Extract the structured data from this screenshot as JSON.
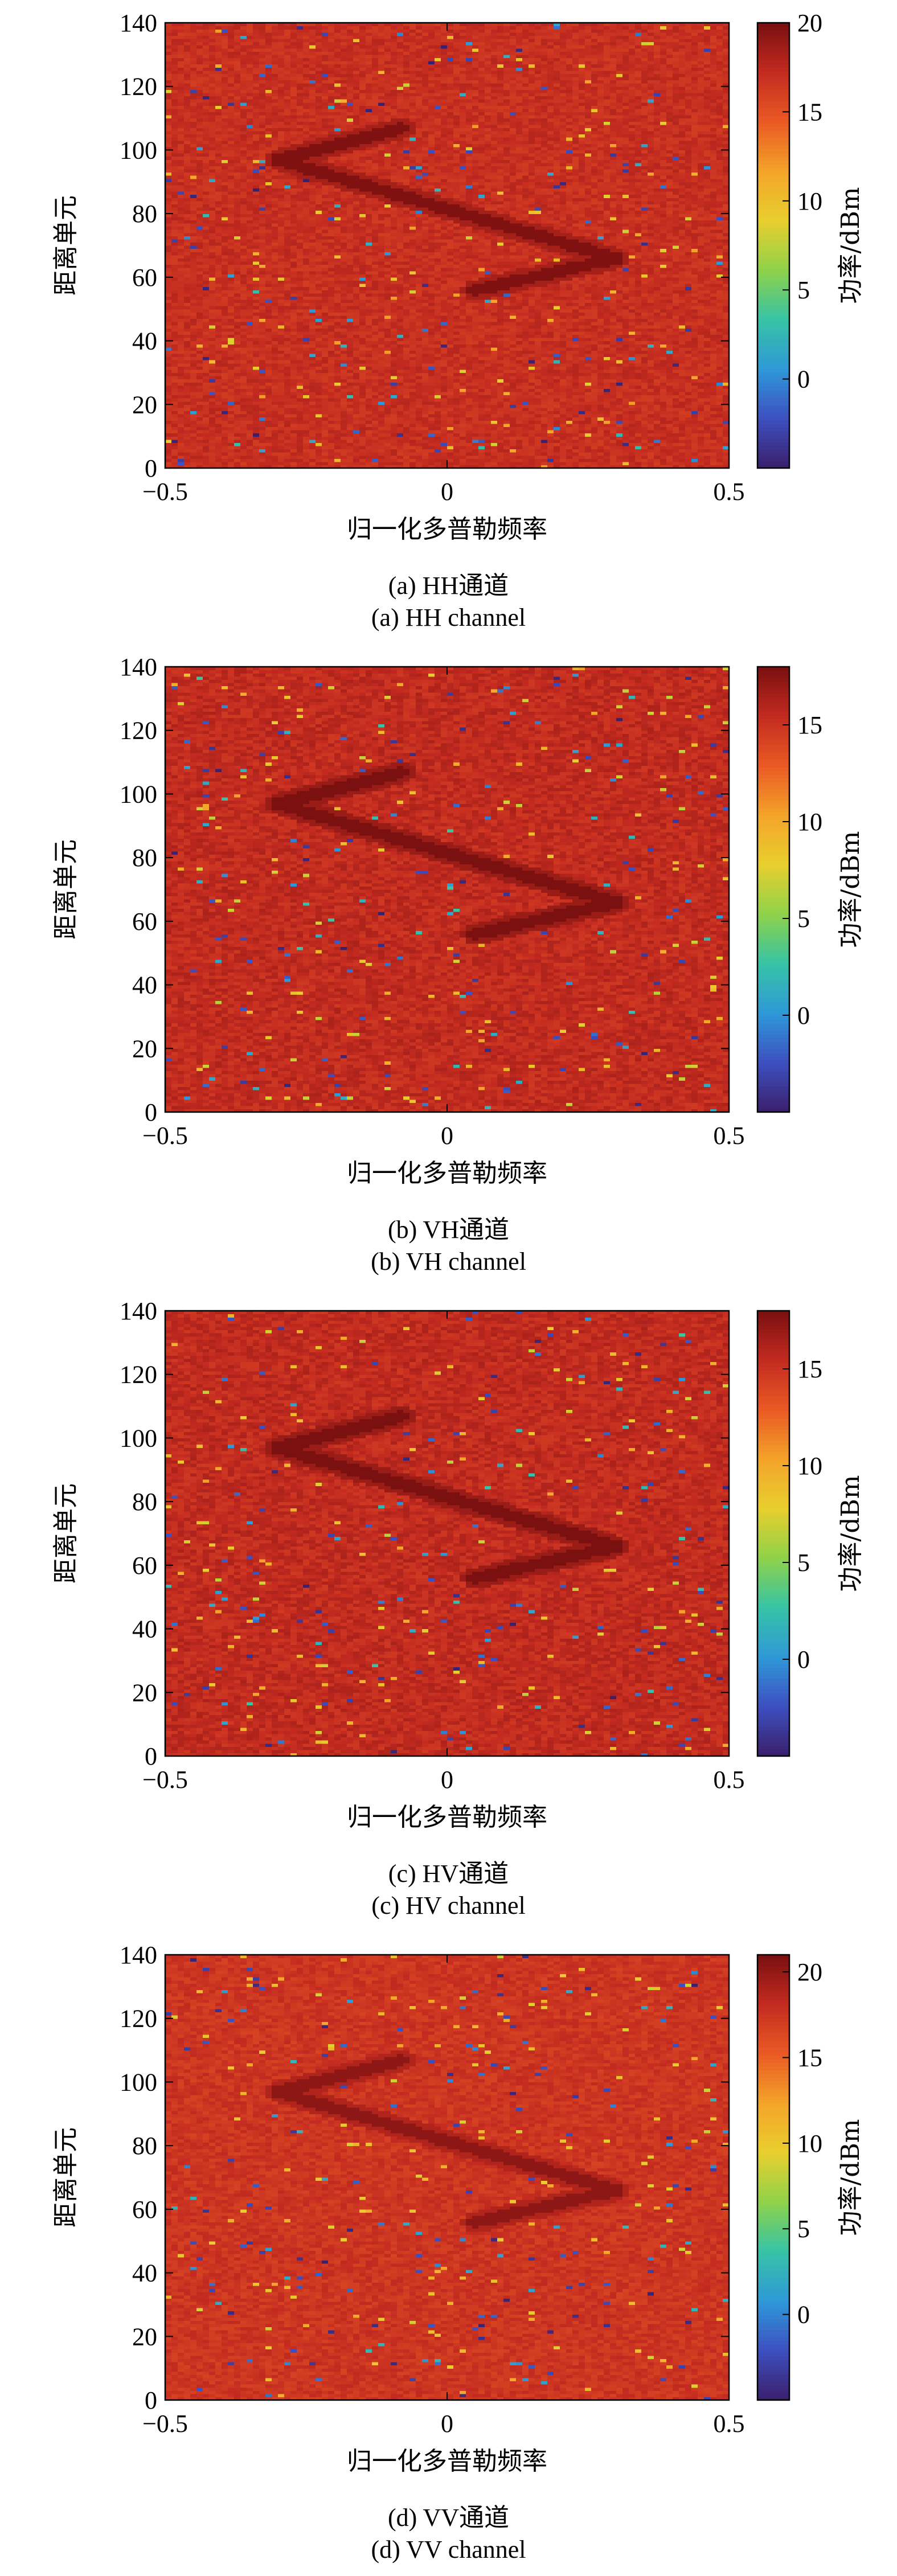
{
  "colors": {
    "background_cell": "#d53a28",
    "target_trace": "#8f1a16",
    "colormap": [
      "#3a1f6b",
      "#3d4fc0",
      "#2f98d8",
      "#36c3a6",
      "#8ed24a",
      "#e8cf2e",
      "#f4a42a",
      "#ea5a24",
      "#c42b20",
      "#7a1010"
    ]
  },
  "chart_data": [
    {
      "type": "heatmap",
      "caption_cn": "(a) HH通道",
      "caption_en": "(a) HH channel",
      "xlabel": "归一化多普勒频率",
      "ylabel": "距离单元",
      "colorbar_label": "功率/dBm",
      "x_ticks": [
        "−0.5",
        "0",
        "0.5"
      ],
      "y_ticks": [
        "0",
        "20",
        "40",
        "60",
        "80",
        "100",
        "120",
        "140"
      ],
      "xlim": [
        -0.5,
        0.5
      ],
      "ylim": [
        0,
        140
      ],
      "colorbar_ticks": [
        "0",
        "5",
        "10",
        "15",
        "20"
      ],
      "colorbar_values": [
        0,
        5,
        10,
        15,
        20
      ],
      "clim": [
        -5,
        20
      ],
      "background_level": 17,
      "trace": {
        "points": [
          [
            -0.08,
            107
          ],
          [
            -0.3,
            97
          ],
          [
            0.3,
            66
          ],
          [
            0.05,
            56
          ]
        ],
        "level": 19
      },
      "speckle_seed": 11
    },
    {
      "type": "heatmap",
      "caption_cn": "(b) VH通道",
      "caption_en": "(b) VH channel",
      "xlabel": "归一化多普勒频率",
      "ylabel": "距离单元",
      "colorbar_label": "功率/dBm",
      "x_ticks": [
        "−0.5",
        "0",
        "0.5"
      ],
      "y_ticks": [
        "0",
        "20",
        "40",
        "60",
        "80",
        "100",
        "120",
        "140"
      ],
      "xlim": [
        -0.5,
        0.5
      ],
      "ylim": [
        0,
        140
      ],
      "colorbar_ticks": [
        "0",
        "5",
        "10",
        "15"
      ],
      "colorbar_values": [
        0,
        5,
        10,
        15
      ],
      "clim": [
        -5,
        18
      ],
      "background_level": 15.5,
      "trace": {
        "points": [
          [
            -0.08,
            107
          ],
          [
            -0.3,
            97
          ],
          [
            0.3,
            66
          ],
          [
            0.05,
            56
          ]
        ],
        "level": 17.5
      },
      "speckle_seed": 23
    },
    {
      "type": "heatmap",
      "caption_cn": "(c) HV通道",
      "caption_en": "(c) HV channel",
      "xlabel": "归一化多普勒频率",
      "ylabel": "距离单元",
      "colorbar_label": "功率/dBm",
      "x_ticks": [
        "−0.5",
        "0",
        "0.5"
      ],
      "y_ticks": [
        "0",
        "20",
        "40",
        "60",
        "80",
        "100",
        "120",
        "140"
      ],
      "xlim": [
        -0.5,
        0.5
      ],
      "ylim": [
        0,
        140
      ],
      "colorbar_ticks": [
        "0",
        "5",
        "10",
        "15"
      ],
      "colorbar_values": [
        0,
        5,
        10,
        15
      ],
      "clim": [
        -5,
        18
      ],
      "background_level": 15.5,
      "trace": {
        "points": [
          [
            -0.08,
            107
          ],
          [
            -0.3,
            97
          ],
          [
            0.3,
            66
          ],
          [
            0.05,
            56
          ]
        ],
        "level": 17.5
      },
      "speckle_seed": 37
    },
    {
      "type": "heatmap",
      "caption_cn": "(d) VV通道",
      "caption_en": "(d) VV channel",
      "xlabel": "归一化多普勒频率",
      "ylabel": "距离单元",
      "colorbar_label": "功率/dBm",
      "x_ticks": [
        "−0.5",
        "0",
        "0.5"
      ],
      "y_ticks": [
        "0",
        "20",
        "40",
        "60",
        "80",
        "100",
        "120",
        "140"
      ],
      "xlim": [
        -0.5,
        0.5
      ],
      "ylim": [
        0,
        140
      ],
      "colorbar_ticks": [
        "0",
        "5",
        "10",
        "15",
        "20"
      ],
      "colorbar_values": [
        0,
        5,
        10,
        15,
        20
      ],
      "clim": [
        -5,
        21
      ],
      "background_level": 17.5,
      "trace": {
        "points": [
          [
            -0.08,
            107
          ],
          [
            -0.3,
            97
          ],
          [
            0.3,
            66
          ],
          [
            0.05,
            56
          ]
        ],
        "level": 19.5
      },
      "speckle_seed": 53
    }
  ]
}
